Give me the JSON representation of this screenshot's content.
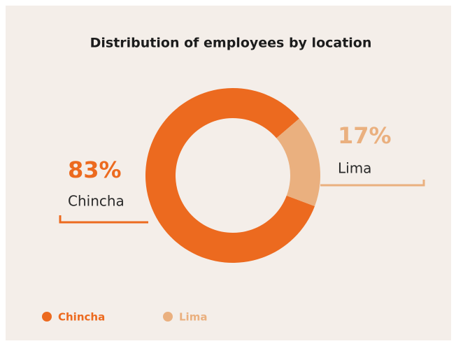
{
  "chart_data": {
    "type": "donut",
    "title": "Distribution of employees by location",
    "categories": [
      "Chincha",
      "Lima"
    ],
    "values": [
      83,
      17
    ],
    "value_labels": [
      "83%",
      "17%"
    ],
    "colors": [
      "#ec6a1f",
      "#eab07f"
    ]
  }
}
